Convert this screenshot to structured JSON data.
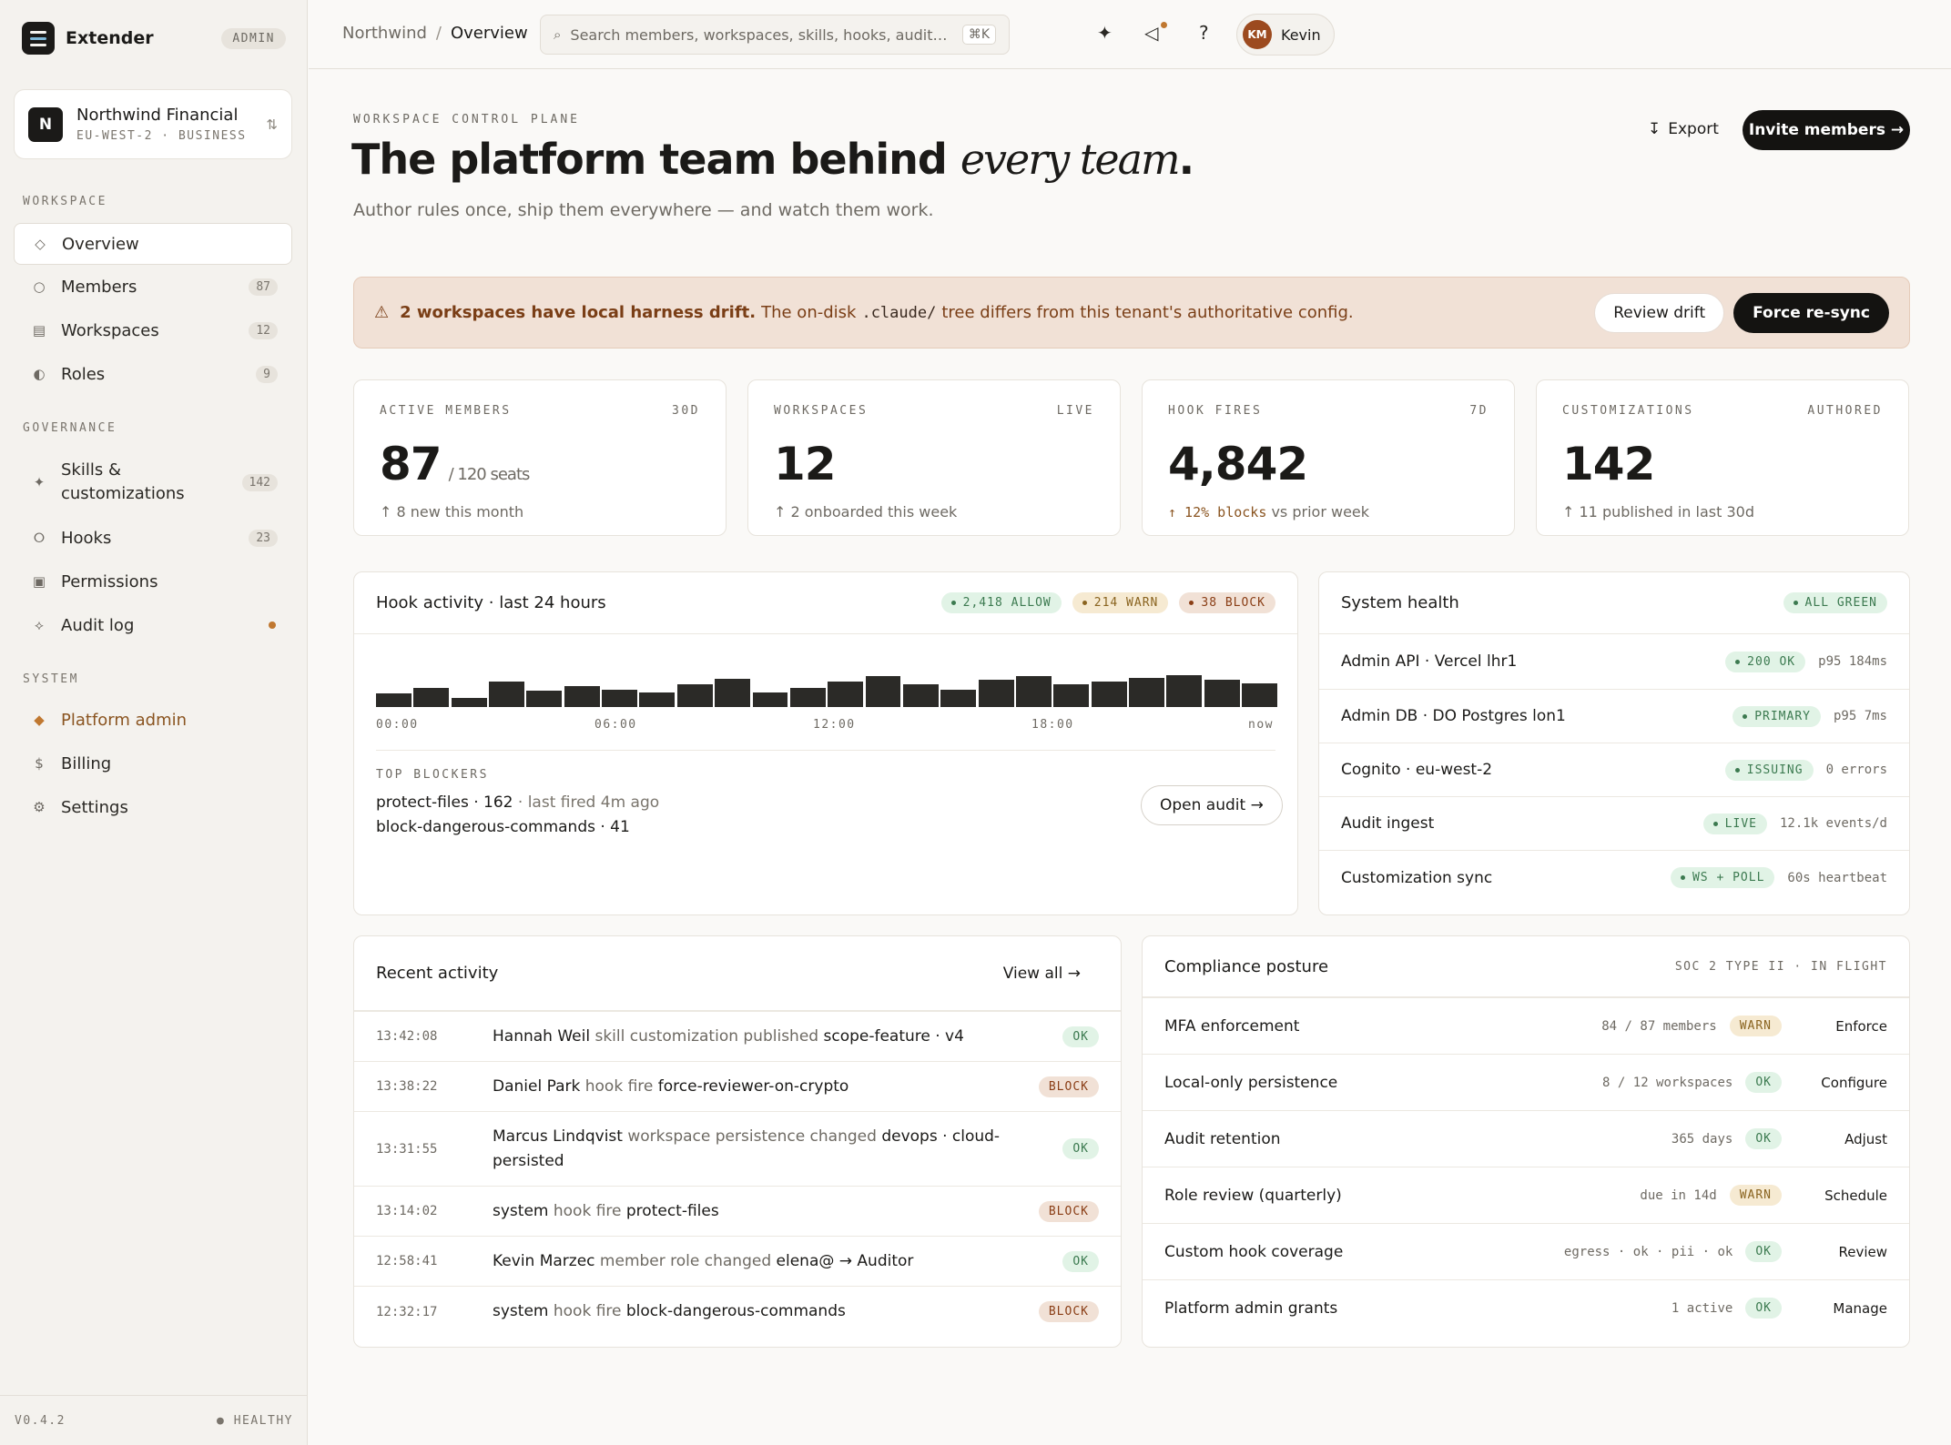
{
  "app": {
    "name": "Extender",
    "badge": "ADMIN",
    "version": "V0.4.2",
    "health": "HEALTHY"
  },
  "tenant": {
    "initial": "N",
    "name": "Northwind Financial",
    "region": "EU-WEST-2",
    "plan": "BUSINESS"
  },
  "nav": {
    "workspace_label": "WORKSPACE",
    "workspace": [
      {
        "label": "Overview",
        "icon": "diamond-icon"
      },
      {
        "label": "Members",
        "icon": "circle-icon",
        "count": "87"
      },
      {
        "label": "Workspaces",
        "icon": "grid-icon",
        "count": "12"
      },
      {
        "label": "Roles",
        "icon": "half-circle-icon",
        "count": "9"
      }
    ],
    "governance_label": "GOVERNANCE",
    "governance": [
      {
        "label": "Skills &",
        "label2": "customizations",
        "icon": "sparkle-icon",
        "count": "142"
      },
      {
        "label": "Hooks",
        "icon": "hook-icon",
        "count": "23"
      },
      {
        "label": "Permissions",
        "icon": "square-icon"
      },
      {
        "label": "Audit log",
        "icon": "audit-icon"
      }
    ],
    "system_label": "SYSTEM",
    "system": [
      {
        "label": "Platform admin",
        "icon": "diamond-filled-icon"
      },
      {
        "label": "Billing",
        "icon": "dollar-icon"
      },
      {
        "label": "Settings",
        "icon": "gear-icon"
      }
    ]
  },
  "topbar": {
    "breadcrumb": [
      "Northwind",
      "Overview"
    ],
    "search_placeholder": "Search members, workspaces, skills, hooks, audit…",
    "search_shortcut": "⌘K",
    "user": {
      "initials": "KM",
      "name": "Kevin"
    }
  },
  "header": {
    "eyebrow": "WORKSPACE CONTROL PLANE",
    "title_main": "The platform team behind ",
    "title_italic": "every team",
    "title_end": ".",
    "subtitle": "Author rules once, ship them everywhere — and watch them work.",
    "export_label": "Export",
    "invite_label": "Invite members →"
  },
  "banner": {
    "strong": "2 workspaces have local harness drift.",
    "text1": "The on-disk",
    "code": ".claude/",
    "text2": "tree differs from this tenant's authoritative config.",
    "review_label": "Review drift",
    "resync_label": "Force re-sync"
  },
  "stats": [
    {
      "label": "ACTIVE MEMBERS",
      "tag": "30D",
      "value": "87",
      "suffix": "/ 120 seats",
      "foot": "↑ 8  new this month"
    },
    {
      "label": "WORKSPACES",
      "tag": "LIVE",
      "value": "12",
      "suffix": "",
      "foot": "↑ 2  onboarded this week"
    },
    {
      "label": "HOOK FIRES",
      "tag": "7D",
      "value": "4,842",
      "suffix": "",
      "foot_arrow": "↑ 12% blocks",
      "foot": " vs prior week"
    },
    {
      "label": "CUSTOMIZATIONS",
      "tag": "AUTHORED",
      "value": "142",
      "suffix": "",
      "foot": "↑ 11  published in last 30d"
    }
  ],
  "hook_activity": {
    "title": "Hook activity · last 24 hours",
    "allow": "2,418 ALLOW",
    "warn": "214 WARN",
    "block": "38 BLOCK",
    "bars": [
      0.32,
      0.45,
      0.22,
      0.6,
      0.4,
      0.5,
      0.42,
      0.34,
      0.55,
      0.68,
      0.35,
      0.46,
      0.6,
      0.75,
      0.55,
      0.42,
      0.66,
      0.74,
      0.54,
      0.6,
      0.7,
      0.76,
      0.65,
      0.56
    ],
    "axis": [
      "00:00",
      "06:00",
      "12:00",
      "18:00",
      "now"
    ],
    "top_blockers_label": "TOP BLOCKERS",
    "blocker1_name": "protect-files · 162",
    "blocker1_meta": " · last fired 4m ago",
    "blocker2_name": "block-dangerous-commands · 41",
    "open_audit_label": "Open audit →"
  },
  "system_health": {
    "title": "System health",
    "status": "ALL GREEN",
    "rows": [
      {
        "name": "Admin API · Vercel lhr1",
        "pill": "200 OK",
        "meta": "p95 184ms"
      },
      {
        "name": "Admin DB · DO Postgres lon1",
        "pill": "PRIMARY",
        "meta": "p95 7ms"
      },
      {
        "name": "Cognito · eu-west-2",
        "pill": "ISSUING",
        "meta": "0 errors"
      },
      {
        "name": "Audit ingest",
        "pill": "LIVE",
        "meta": "12.1k events/d"
      },
      {
        "name": "Customization sync",
        "pill": "WS + POLL",
        "meta": "60s heartbeat"
      }
    ]
  },
  "recent_activity": {
    "title": "Recent activity",
    "view_all": "View all →",
    "rows": [
      {
        "time": "13:42:08",
        "actor": "Hannah Weil",
        "verb": " skill customization published ",
        "subject": "scope-feature · v4",
        "status": "OK",
        "kind": "g"
      },
      {
        "time": "13:38:22",
        "actor": "Daniel Park",
        "verb": " hook fire ",
        "subject": "force-reviewer-on-crypto",
        "status": "BLOCK",
        "kind": "r"
      },
      {
        "time": "13:31:55",
        "actor": "Marcus Lindqvist",
        "verb": " workspace persistence changed ",
        "subject": "devops · cloud-persisted",
        "status": "OK",
        "kind": "g"
      },
      {
        "time": "13:14:02",
        "actor": "system",
        "verb": " hook fire ",
        "subject": "protect-files",
        "status": "BLOCK",
        "kind": "r"
      },
      {
        "time": "12:58:41",
        "actor": "Kevin Marzec",
        "verb": " member role changed ",
        "subject": "elena@ → Auditor",
        "status": "OK",
        "kind": "g"
      },
      {
        "time": "12:32:17",
        "actor": "system",
        "verb": " hook fire ",
        "subject": "block-dangerous-commands",
        "status": "BLOCK",
        "kind": "r"
      }
    ]
  },
  "compliance": {
    "title": "Compliance posture",
    "tag": "SOC 2 TYPE II · IN FLIGHT",
    "rows": [
      {
        "name": "MFA enforcement",
        "meta": "84 / 87 members",
        "status": "WARN",
        "kind": "y",
        "action": "Enforce"
      },
      {
        "name": "Local-only persistence",
        "meta": "8 / 12 workspaces",
        "status": "OK",
        "kind": "g",
        "action": "Configure"
      },
      {
        "name": "Audit retention",
        "meta": "365 days",
        "status": "OK",
        "kind": "g",
        "action": "Adjust"
      },
      {
        "name": "Role review (quarterly)",
        "meta": "due in 14d",
        "status": "WARN",
        "kind": "y",
        "action": "Schedule"
      },
      {
        "name": "Custom hook coverage",
        "meta": "egress · ok · pii · ok",
        "status": "OK",
        "kind": "g",
        "action": "Review"
      },
      {
        "name": "Platform admin grants",
        "meta": "1 active",
        "status": "OK",
        "kind": "g",
        "action": "Manage"
      }
    ]
  },
  "colors": {
    "accent": "#c07830",
    "dark": "#141311",
    "ok": "#3c7a50",
    "warn": "#8a6420",
    "block": "#8a3e16"
  }
}
